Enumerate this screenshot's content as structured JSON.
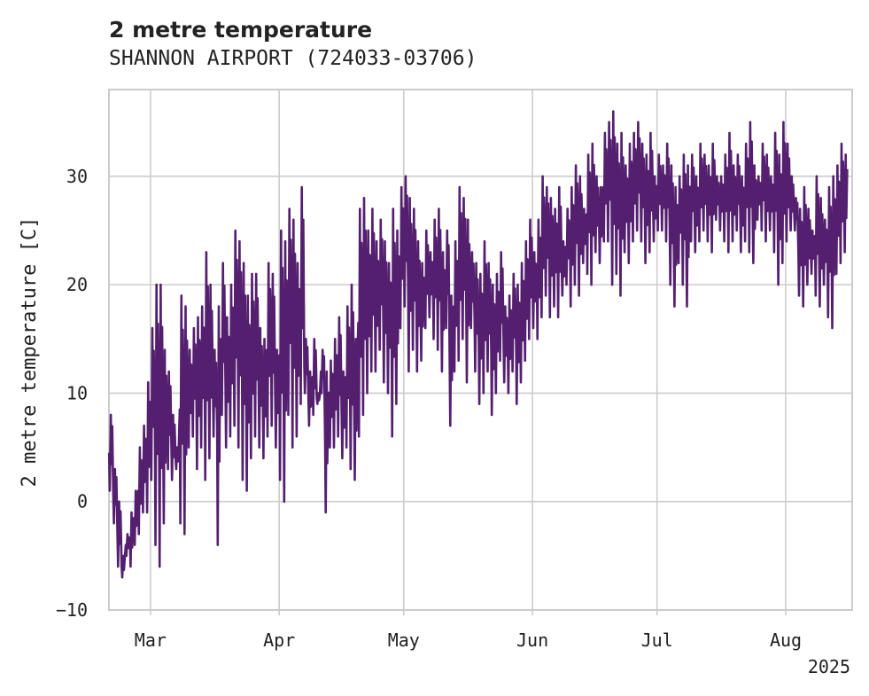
{
  "chart_data": {
    "type": "line",
    "title": "2 metre temperature",
    "subtitle": "SHANNON AIRPORT (724033-03706)",
    "xlabel": "",
    "ylabel": "2 metre temperature [C]",
    "x_range": [
      "2025-02-19",
      "2025-08-17"
    ],
    "ylim": [
      -10,
      38
    ],
    "y_ticks": [
      -10,
      0,
      10,
      20,
      30
    ],
    "y_tick_labels": [
      "−10",
      "0",
      "10",
      "20",
      "30"
    ],
    "x_ticks": [
      {
        "date": "2025-03-01",
        "label": "Mar"
      },
      {
        "date": "2025-04-01",
        "label": "Apr"
      },
      {
        "date": "2025-05-01",
        "label": "May"
      },
      {
        "date": "2025-06-01",
        "label": "Jun"
      },
      {
        "date": "2025-07-01",
        "label": "Jul"
      },
      {
        "date": "2025-08-01",
        "label": "Aug"
      }
    ],
    "x_year_label": "2025",
    "grid": true,
    "color": "#541f6f",
    "sampling_note": "approximate daily min/max envelope read from the plot",
    "series": [
      {
        "x": [
          "2025-02-19",
          "2025-02-20",
          "2025-02-21",
          "2025-02-22",
          "2025-02-23",
          "2025-02-24",
          "2025-02-25",
          "2025-02-26",
          "2025-02-27",
          "2025-02-28",
          "2025-03-01",
          "2025-03-02",
          "2025-03-03",
          "2025-03-04",
          "2025-03-05",
          "2025-03-06",
          "2025-03-07",
          "2025-03-08",
          "2025-03-09",
          "2025-03-10",
          "2025-03-11",
          "2025-03-12",
          "2025-03-13",
          "2025-03-14",
          "2025-03-15",
          "2025-03-16",
          "2025-03-17",
          "2025-03-18",
          "2025-03-19",
          "2025-03-20",
          "2025-03-21",
          "2025-03-22",
          "2025-03-23",
          "2025-03-24",
          "2025-03-25",
          "2025-03-26",
          "2025-03-27",
          "2025-03-28",
          "2025-03-29",
          "2025-03-30",
          "2025-03-31",
          "2025-04-01",
          "2025-04-02",
          "2025-04-03",
          "2025-04-04",
          "2025-04-05",
          "2025-04-06",
          "2025-04-07",
          "2025-04-08",
          "2025-04-09",
          "2025-04-10",
          "2025-04-11",
          "2025-04-12",
          "2025-04-13",
          "2025-04-14",
          "2025-04-15",
          "2025-04-16",
          "2025-04-17",
          "2025-04-18",
          "2025-04-19",
          "2025-04-20",
          "2025-04-21",
          "2025-04-22",
          "2025-04-23",
          "2025-04-24",
          "2025-04-25",
          "2025-04-26",
          "2025-04-27",
          "2025-04-28",
          "2025-04-29",
          "2025-04-30",
          "2025-05-01",
          "2025-05-02",
          "2025-05-03",
          "2025-05-04",
          "2025-05-05",
          "2025-05-06",
          "2025-05-07",
          "2025-05-08",
          "2025-05-09",
          "2025-05-10",
          "2025-05-11",
          "2025-05-12",
          "2025-05-13",
          "2025-05-14",
          "2025-05-15",
          "2025-05-16",
          "2025-05-17",
          "2025-05-18",
          "2025-05-19",
          "2025-05-20",
          "2025-05-21",
          "2025-05-22",
          "2025-05-23",
          "2025-05-24",
          "2025-05-25",
          "2025-05-26",
          "2025-05-27",
          "2025-05-28",
          "2025-05-29",
          "2025-05-30",
          "2025-05-31",
          "2025-06-01",
          "2025-06-02",
          "2025-06-03",
          "2025-06-04",
          "2025-06-05",
          "2025-06-06",
          "2025-06-07",
          "2025-06-08",
          "2025-06-09",
          "2025-06-10",
          "2025-06-11",
          "2025-06-12",
          "2025-06-13",
          "2025-06-14",
          "2025-06-15",
          "2025-06-16",
          "2025-06-17",
          "2025-06-18",
          "2025-06-19",
          "2025-06-20",
          "2025-06-21",
          "2025-06-22",
          "2025-06-23",
          "2025-06-24",
          "2025-06-25",
          "2025-06-26",
          "2025-06-27",
          "2025-06-28",
          "2025-06-29",
          "2025-06-30",
          "2025-07-01",
          "2025-07-02",
          "2025-07-03",
          "2025-07-04",
          "2025-07-05",
          "2025-07-06",
          "2025-07-07",
          "2025-07-08",
          "2025-07-09",
          "2025-07-10",
          "2025-07-11",
          "2025-07-12",
          "2025-07-13",
          "2025-07-14",
          "2025-07-15",
          "2025-07-16",
          "2025-07-17",
          "2025-07-18",
          "2025-07-19",
          "2025-07-20",
          "2025-07-21",
          "2025-07-22",
          "2025-07-23",
          "2025-07-24",
          "2025-07-25",
          "2025-07-26",
          "2025-07-27",
          "2025-07-28",
          "2025-07-29",
          "2025-07-30",
          "2025-07-31",
          "2025-08-01",
          "2025-08-02",
          "2025-08-03",
          "2025-08-04",
          "2025-08-05",
          "2025-08-06",
          "2025-08-07",
          "2025-08-08",
          "2025-08-09",
          "2025-08-10",
          "2025-08-11",
          "2025-08-12",
          "2025-08-13",
          "2025-08-14",
          "2025-08-15",
          "2025-08-16"
        ],
        "min": [
          1,
          -2,
          -6,
          -7,
          -5,
          -6,
          -4,
          -3,
          -1,
          -1,
          2,
          -4,
          -6,
          -2,
          3,
          2,
          3,
          -2,
          -3,
          5,
          6,
          3,
          5,
          2,
          4,
          6,
          -4,
          8,
          5,
          6,
          7,
          5,
          2,
          1,
          4,
          6,
          5,
          4,
          6,
          7,
          5,
          2,
          0,
          8,
          5,
          6,
          9,
          10,
          7,
          8,
          9,
          10,
          -1,
          5,
          5,
          6,
          4,
          5,
          3,
          2,
          6,
          8,
          10,
          12,
          12,
          14,
          11,
          10,
          6,
          9,
          16,
          18,
          12,
          14,
          12,
          13,
          16,
          17,
          15,
          14,
          12,
          16,
          7,
          12,
          13,
          15,
          11,
          16,
          12,
          9,
          10,
          12,
          8,
          10,
          13,
          11,
          10,
          12,
          9,
          11,
          13,
          15,
          16,
          15,
          17,
          19,
          17,
          18,
          17,
          19,
          20,
          18,
          20,
          19,
          22,
          21,
          20,
          23,
          22,
          24,
          24,
          20,
          21,
          19,
          23,
          22,
          24,
          25,
          24,
          22,
          23,
          24,
          25,
          25,
          24,
          20,
          18,
          22,
          20,
          18,
          24,
          23,
          24,
          25,
          24,
          23,
          26,
          25,
          24,
          23,
          24,
          25,
          23,
          24,
          23,
          22,
          26,
          25,
          24,
          25,
          23,
          20,
          22,
          24,
          25,
          25,
          19,
          18,
          20,
          21,
          19,
          18,
          20,
          17,
          16,
          21,
          22,
          23,
          24
        ],
        "max": [
          8,
          3,
          0,
          -5,
          -3,
          -1,
          1,
          5,
          7,
          11,
          16,
          20,
          20,
          14,
          12,
          8,
          5,
          19,
          18,
          14,
          16,
          17,
          18,
          23,
          20,
          14,
          18,
          22,
          17,
          20,
          25,
          24,
          22,
          19,
          21,
          21,
          16,
          15,
          22,
          21,
          14,
          25,
          24,
          27,
          26,
          22,
          29,
          15,
          12,
          15,
          10,
          14,
          12,
          13,
          15,
          17,
          12,
          18,
          20,
          15,
          27,
          28,
          25,
          27,
          24,
          26,
          24,
          22,
          27,
          25,
          29,
          30,
          28,
          27,
          24,
          22,
          25,
          23,
          26,
          27,
          23,
          25,
          19,
          24,
          29,
          28,
          26,
          23,
          22,
          21,
          24,
          22,
          20,
          21,
          23,
          18,
          19,
          21,
          20,
          22,
          24,
          26,
          23,
          26,
          30,
          29,
          28,
          27,
          29,
          24,
          27,
          29,
          31,
          30,
          27,
          32,
          33,
          30,
          29,
          34,
          35,
          36,
          33,
          34,
          31,
          33,
          34,
          35,
          33,
          32,
          34,
          30,
          32,
          31,
          33,
          31,
          29,
          30,
          32,
          31,
          32,
          30,
          33,
          32,
          31,
          33,
          30,
          30,
          32,
          34,
          31,
          32,
          30,
          33,
          35,
          31,
          30,
          33,
          32,
          30,
          34,
          32,
          35,
          33,
          30,
          28,
          27,
          29,
          27,
          25,
          30,
          28,
          26,
          29,
          30,
          31,
          33,
          32
        ]
      }
    ]
  }
}
